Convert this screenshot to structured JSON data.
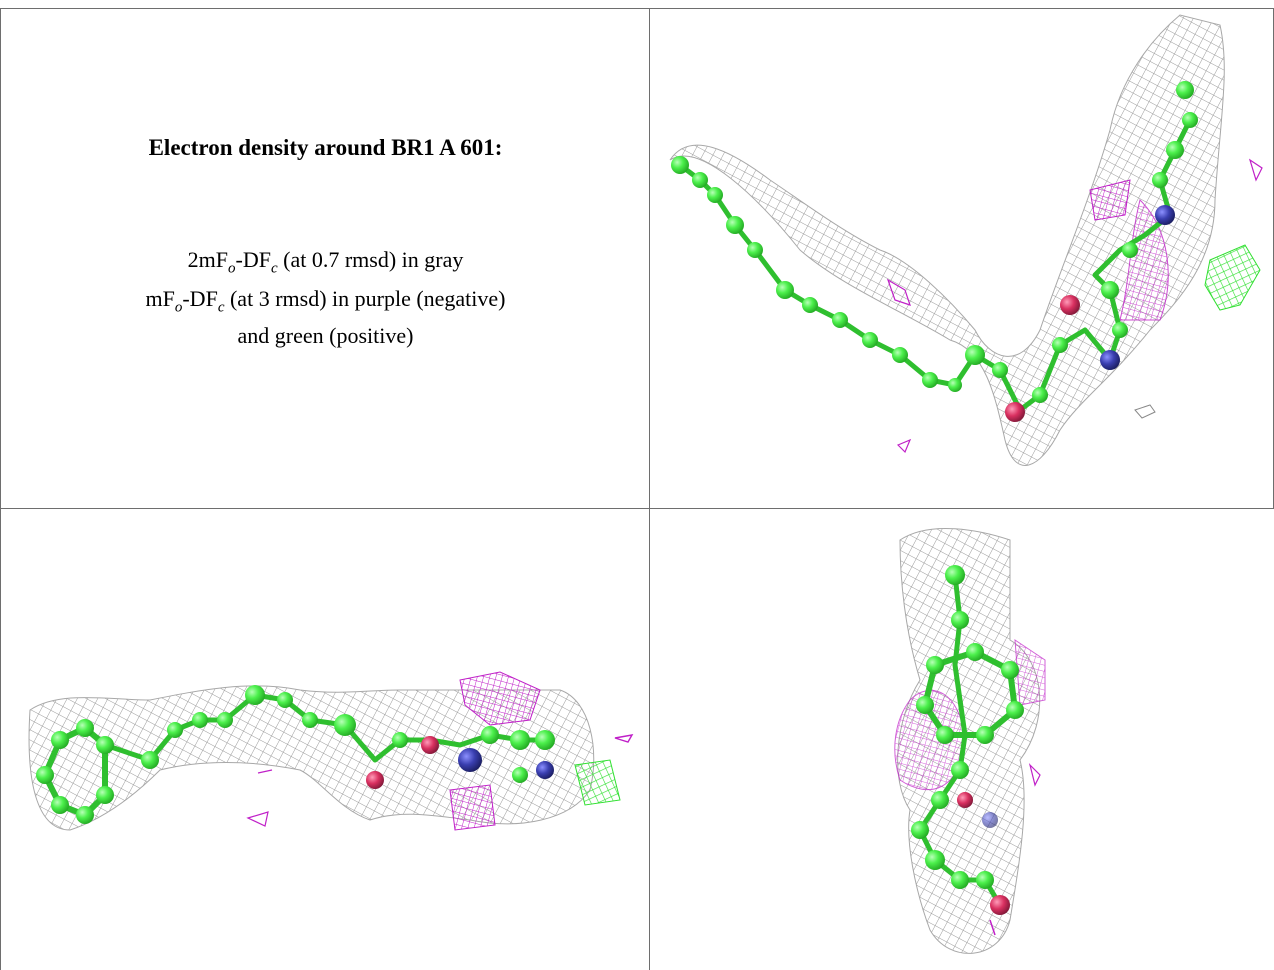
{
  "caption": {
    "title": "Electron density around BR1 A 601:",
    "line1_prefix": "2mF",
    "line1_sub1": "o",
    "line1_mid": "-DF",
    "line1_sub2": "c",
    "line1_suffix": " (at 0.7 rmsd) in gray",
    "line2_prefix": "mF",
    "line2_sub1": "o",
    "line2_mid": "-DF",
    "line2_sub2": "c",
    "line2_suffix": " (at 3 rmsd) in purple (negative)",
    "line3": "and green (positive)"
  },
  "colors": {
    "carbon": "#4cf04c",
    "carbon_dark": "#2fbf2f",
    "nitrogen": "#3a3fb0",
    "oxygen": "#d93060",
    "mesh_gray": "#9a9a9a",
    "mesh_negative": "#c020c8",
    "mesh_positive": "#30e030",
    "border": "#6e6e6e"
  }
}
